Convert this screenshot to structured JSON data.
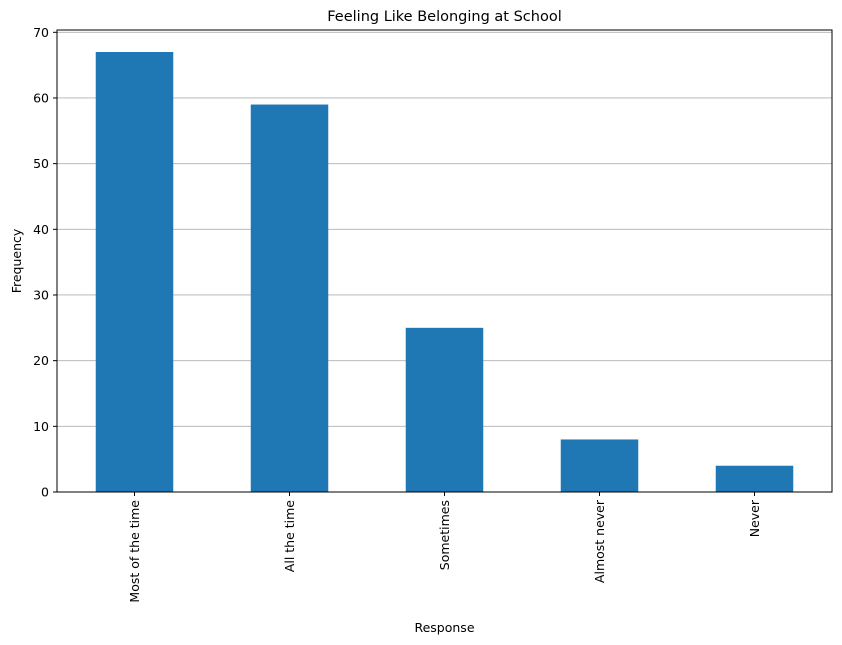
{
  "chart_data": {
    "type": "bar",
    "title": "Feeling Like Belonging at School",
    "xlabel": "Response",
    "ylabel": "Frequency",
    "categories": [
      "Most of the time",
      "All the time",
      "Sometimes",
      "Almost never",
      "Never"
    ],
    "values": [
      67,
      59,
      25,
      8,
      4
    ],
    "ylim": [
      0,
      70.35
    ],
    "yticks": [
      0,
      10,
      20,
      30,
      40,
      50,
      60,
      70
    ],
    "grid": "y",
    "bar_color": "#1f77b4"
  }
}
